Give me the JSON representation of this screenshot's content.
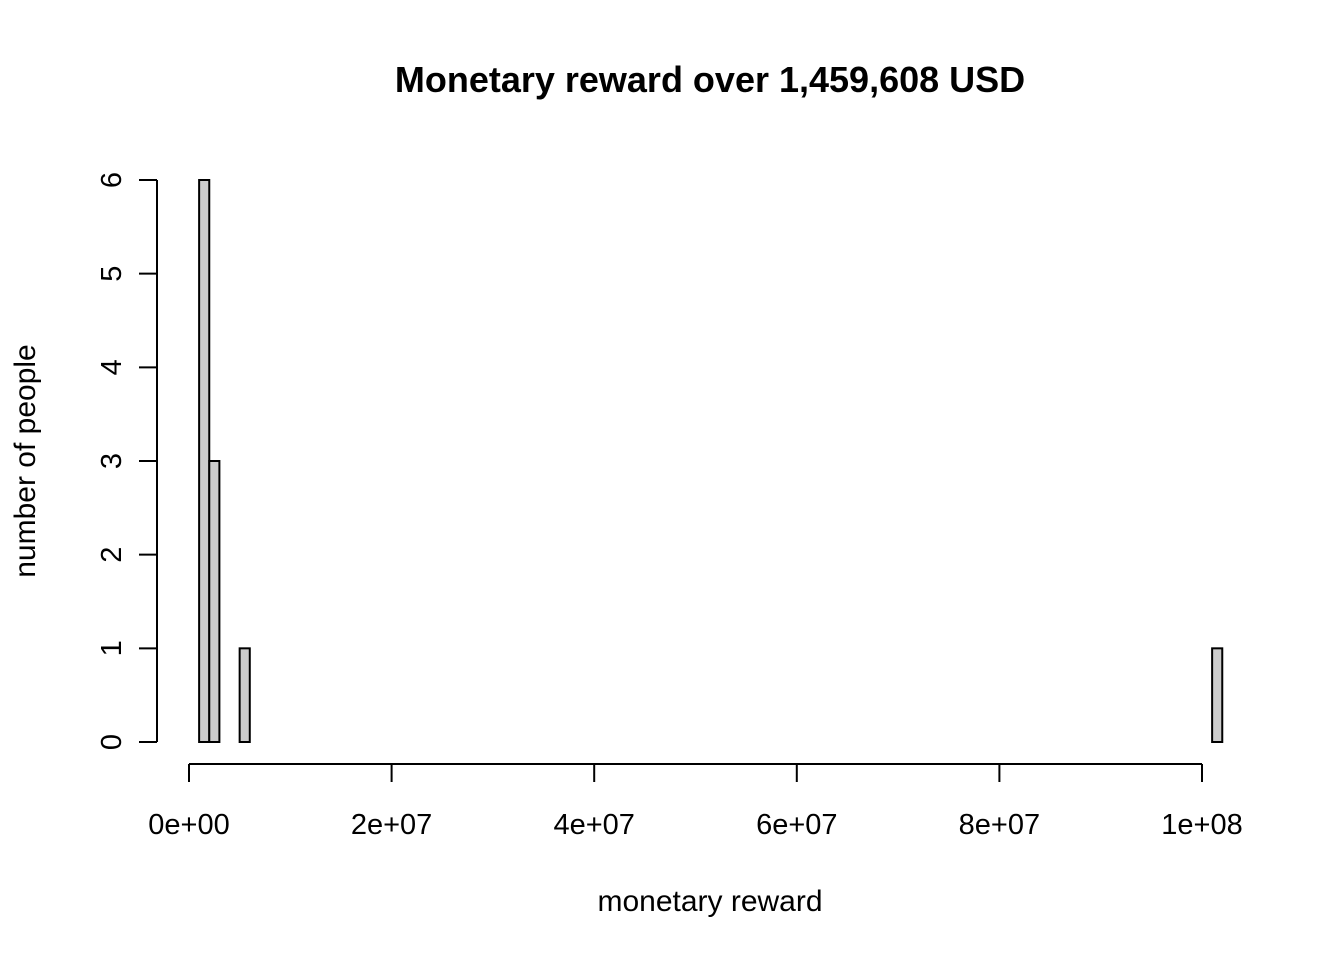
{
  "chart_data": {
    "type": "bar",
    "title": "Monetary reward over 1,459,608 USD",
    "xlabel": "monetary reward",
    "ylabel": "number of people",
    "xlim": [
      0,
      100000000
    ],
    "ylim": [
      0,
      6
    ],
    "bin_width": 1000000,
    "x_ticks": [
      {
        "value": 0,
        "label": "0e+00"
      },
      {
        "value": 20000000,
        "label": "2e+07"
      },
      {
        "value": 40000000,
        "label": "4e+07"
      },
      {
        "value": 60000000,
        "label": "6e+07"
      },
      {
        "value": 80000000,
        "label": "8e+07"
      },
      {
        "value": 100000000,
        "label": "1e+08"
      }
    ],
    "y_ticks": [
      {
        "value": 0,
        "label": "0"
      },
      {
        "value": 1,
        "label": "1"
      },
      {
        "value": 2,
        "label": "2"
      },
      {
        "value": 3,
        "label": "3"
      },
      {
        "value": 4,
        "label": "4"
      },
      {
        "value": 5,
        "label": "5"
      },
      {
        "value": 6,
        "label": "6"
      }
    ],
    "bins": [
      {
        "x0": 1000000,
        "x1": 2000000,
        "count": 6
      },
      {
        "x0": 2000000,
        "x1": 3000000,
        "count": 3
      },
      {
        "x0": 5000000,
        "x1": 6000000,
        "count": 1
      },
      {
        "x0": 101000000,
        "x1": 102000000,
        "count": 1
      }
    ],
    "grid": false,
    "legend": "none",
    "bar_color": "#cccccc",
    "border_color": "#000000"
  }
}
